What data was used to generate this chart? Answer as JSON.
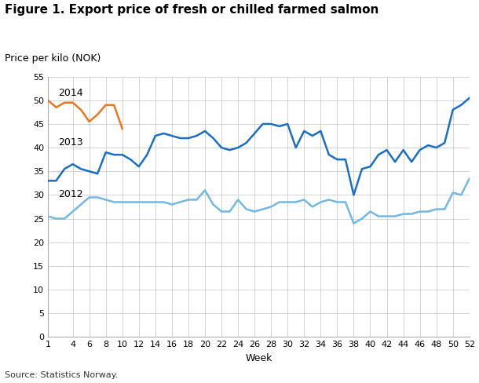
{
  "title": "Figure 1. Export price of fresh or chilled farmed salmon",
  "ylabel": "Price per kilo (NOK)",
  "xlabel": "Week",
  "source": "Source: Statistics Norway.",
  "ylim": [
    0,
    55
  ],
  "yticks": [
    0,
    5,
    10,
    15,
    20,
    25,
    30,
    35,
    40,
    45,
    50,
    55
  ],
  "xticks": [
    1,
    4,
    6,
    8,
    10,
    12,
    14,
    16,
    18,
    20,
    22,
    24,
    26,
    28,
    30,
    32,
    34,
    36,
    38,
    40,
    42,
    44,
    46,
    48,
    50,
    52
  ],
  "color_2014": "#E87722",
  "color_2013": "#1B6EC2",
  "color_2012": "#72B8E0",
  "linewidth": 1.8,
  "weeks_2014": [
    1,
    2,
    3,
    4,
    5,
    6,
    7,
    8,
    9,
    10
  ],
  "data_2014": [
    50.0,
    48.5,
    49.5,
    49.5,
    48.0,
    45.5,
    47.0,
    49.0,
    49.0,
    44.0
  ],
  "weeks_2013": [
    1,
    2,
    3,
    4,
    5,
    6,
    7,
    8,
    9,
    10,
    11,
    12,
    13,
    14,
    15,
    16,
    17,
    18,
    19,
    20,
    21,
    22,
    23,
    24,
    25,
    26,
    27,
    28,
    29,
    30,
    31,
    32,
    33,
    34,
    35,
    36,
    37,
    38,
    39,
    40,
    41,
    42,
    43,
    44,
    45,
    46,
    47,
    48,
    49,
    50,
    51,
    52
  ],
  "data_2013": [
    33.0,
    33.0,
    35.5,
    36.5,
    35.5,
    35.0,
    34.5,
    39.0,
    38.5,
    38.5,
    37.5,
    36.0,
    38.5,
    42.5,
    43.0,
    42.5,
    42.0,
    42.0,
    42.5,
    43.5,
    42.0,
    40.0,
    39.5,
    40.0,
    41.0,
    43.0,
    45.0,
    45.0,
    44.5,
    45.0,
    40.0,
    43.5,
    42.5,
    43.5,
    38.5,
    37.5,
    37.5,
    30.0,
    35.5,
    36.0,
    38.5,
    39.5,
    37.0,
    39.5,
    37.0,
    39.5,
    40.5,
    40.0,
    41.0,
    48.0,
    49.0,
    50.5
  ],
  "weeks_2012": [
    1,
    2,
    3,
    4,
    5,
    6,
    7,
    8,
    9,
    10,
    11,
    12,
    13,
    14,
    15,
    16,
    17,
    18,
    19,
    20,
    21,
    22,
    23,
    24,
    25,
    26,
    27,
    28,
    29,
    30,
    31,
    32,
    33,
    34,
    35,
    36,
    37,
    38,
    39,
    40,
    41,
    42,
    43,
    44,
    45,
    46,
    47,
    48,
    49,
    50,
    51,
    52
  ],
  "data_2012": [
    25.5,
    25.0,
    25.0,
    26.5,
    28.0,
    29.5,
    29.5,
    29.0,
    28.5,
    28.5,
    28.5,
    28.5,
    28.5,
    28.5,
    28.5,
    28.0,
    28.5,
    29.0,
    29.0,
    31.0,
    28.0,
    26.5,
    26.5,
    29.0,
    27.0,
    26.5,
    27.0,
    27.5,
    28.5,
    28.5,
    28.5,
    29.0,
    27.5,
    28.5,
    29.0,
    28.5,
    28.5,
    24.0,
    25.0,
    26.5,
    25.5,
    25.5,
    25.5,
    26.0,
    26.0,
    26.5,
    26.5,
    27.0,
    27.0,
    30.5,
    30.0,
    33.5
  ],
  "bg_color": "#ffffff",
  "grid_color": "#cccccc",
  "label_fontsize": 9,
  "tick_fontsize": 8,
  "title_fontsize": 11
}
